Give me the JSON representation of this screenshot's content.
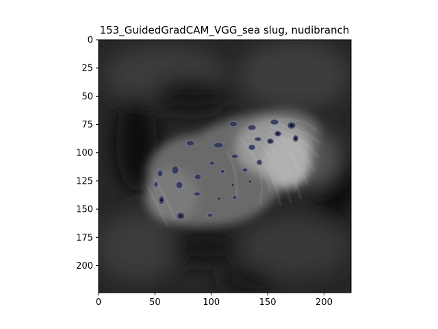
{
  "chart_data": {
    "type": "heatmap",
    "title": "153_GuidedGradCAM_VGG_sea slug, nudibranch",
    "xlabel": "",
    "ylabel": "",
    "xlim": [
      0,
      224
    ],
    "ylim": [
      224,
      0
    ],
    "x_ticks": [
      0,
      50,
      100,
      150,
      200
    ],
    "y_ticks": [
      0,
      25,
      50,
      75,
      100,
      125,
      150,
      175,
      200
    ],
    "x_tick_labels": [
      "0",
      "50",
      "100",
      "150",
      "200"
    ],
    "y_tick_labels": [
      "0",
      "25",
      "50",
      "75",
      "100",
      "125",
      "150",
      "175",
      "200"
    ],
    "image_size": [
      224,
      224
    ],
    "colormap": "gray",
    "grid": false,
    "colors": {
      "background": "#1a1a1a",
      "highlight": "#d0d0d0",
      "spot": "#2a2f55"
    }
  }
}
